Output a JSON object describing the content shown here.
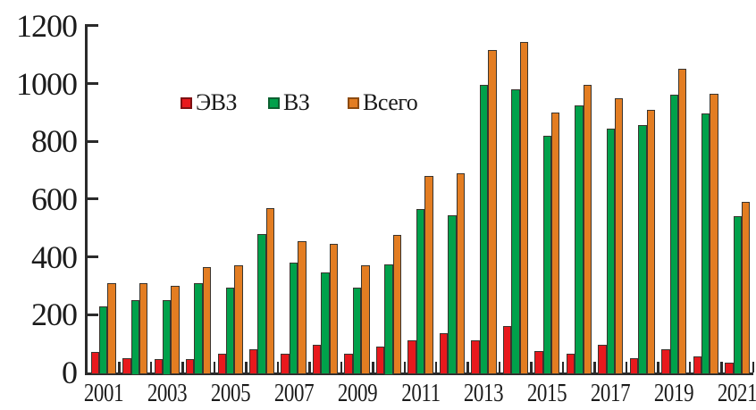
{
  "chart_data": {
    "type": "bar",
    "categories": [
      2001,
      2002,
      2003,
      2004,
      2005,
      2006,
      2007,
      2008,
      2009,
      2010,
      2011,
      2012,
      2013,
      2014,
      2015,
      2016,
      2017,
      2018,
      2019,
      2020,
      2021
    ],
    "x_tick_labels": [
      "2001",
      "2003",
      "2005",
      "2007",
      "2009",
      "2011",
      "2013",
      "2015",
      "2017",
      "2019",
      "2021"
    ],
    "series": [
      {
        "name": "ЭВЗ",
        "key": "evz",
        "color": "#e8191d",
        "swatch_border": "#7e1113",
        "values": [
          70,
          50,
          45,
          45,
          65,
          80,
          65,
          95,
          65,
          90,
          110,
          135,
          110,
          160,
          75,
          65,
          95,
          50,
          80,
          55,
          35
        ]
      },
      {
        "name": "ВЗ",
        "key": "vz",
        "color": "#00a14b",
        "swatch_border": "#0c6030",
        "values": [
          230,
          250,
          250,
          310,
          295,
          480,
          380,
          345,
          295,
          375,
          565,
          545,
          995,
          980,
          820,
          925,
          845,
          855,
          960,
          895,
          540
        ]
      },
      {
        "name": "Всего",
        "key": "vsego",
        "color": "#e37d22",
        "swatch_border": "#8c4a10",
        "values": [
          310,
          310,
          300,
          365,
          370,
          570,
          455,
          445,
          370,
          475,
          680,
          690,
          1115,
          1145,
          900,
          995,
          950,
          910,
          1050,
          965,
          590
        ]
      }
    ],
    "ylim": [
      0,
      1200
    ],
    "yticks": [
      0,
      200,
      400,
      600,
      800,
      1000,
      1200
    ],
    "grid": false,
    "legend_position": "inside-top-left",
    "tick_direction": "inside",
    "axis_color": "#2a2a2a",
    "bar_outline_color": "#3a352f",
    "text_color": "#1b1b1b",
    "background_color": "#ffffff"
  }
}
